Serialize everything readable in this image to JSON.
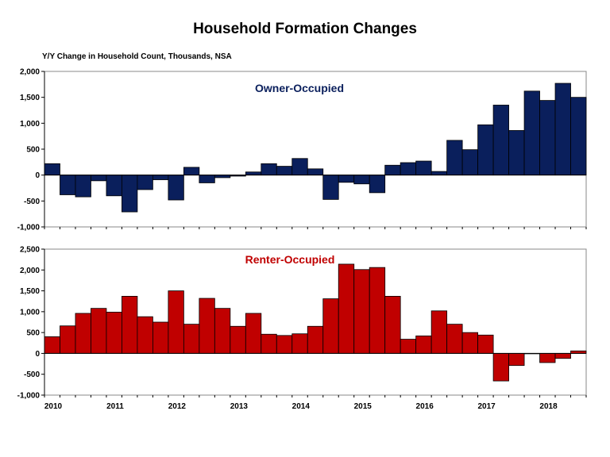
{
  "title": "Household Formation Changes",
  "y_caption": "Y/Y Change in Household Count, Thousands,  NSA",
  "chart_data": [
    {
      "type": "bar",
      "label": "Owner-Occupied",
      "color": "#0a1f5c",
      "label_color": "#0a1f5c",
      "ylim": [
        -1000,
        2000
      ],
      "yticks": [
        -1000,
        -500,
        0,
        500,
        1000,
        1500,
        2000
      ],
      "ytick_labels": [
        "-1,000",
        "-500",
        "0",
        "500",
        "1,000",
        "1,500",
        "2,000"
      ],
      "values": [
        220,
        -380,
        -420,
        -110,
        -400,
        -710,
        -280,
        -90,
        -480,
        150,
        -150,
        -50,
        -20,
        60,
        220,
        170,
        320,
        120,
        -470,
        -140,
        -170,
        -340,
        190,
        240,
        270,
        70,
        670,
        490,
        970,
        1350,
        860,
        1620,
        1440,
        1770,
        1500
      ],
      "grid": false,
      "legend": "none"
    },
    {
      "type": "bar",
      "label": "Renter-Occupied",
      "color": "#c00000",
      "label_color": "#c00000",
      "ylim": [
        -1000,
        2500
      ],
      "yticks": [
        -1000,
        -500,
        0,
        500,
        1000,
        1500,
        2000,
        2500
      ],
      "ytick_labels": [
        "-1,000",
        "-500",
        "0",
        "500",
        "1,000",
        "1,500",
        "2,000",
        "2,500"
      ],
      "values": [
        400,
        660,
        960,
        1080,
        990,
        1370,
        880,
        750,
        1500,
        700,
        1320,
        1080,
        650,
        960,
        460,
        430,
        470,
        650,
        1310,
        2140,
        2010,
        2060,
        1370,
        340,
        420,
        1020,
        700,
        500,
        440,
        -660,
        -290,
        0,
        -220,
        -120,
        60
      ],
      "grid": false,
      "legend": "none"
    }
  ],
  "x_axis": {
    "tick_labels": [
      "2010",
      "2011",
      "2012",
      "2013",
      "2014",
      "2015",
      "2016",
      "2017",
      "2018"
    ],
    "first_tick_bar_index": [
      0,
      4,
      8,
      12,
      16,
      20,
      24,
      28,
      32
    ]
  }
}
